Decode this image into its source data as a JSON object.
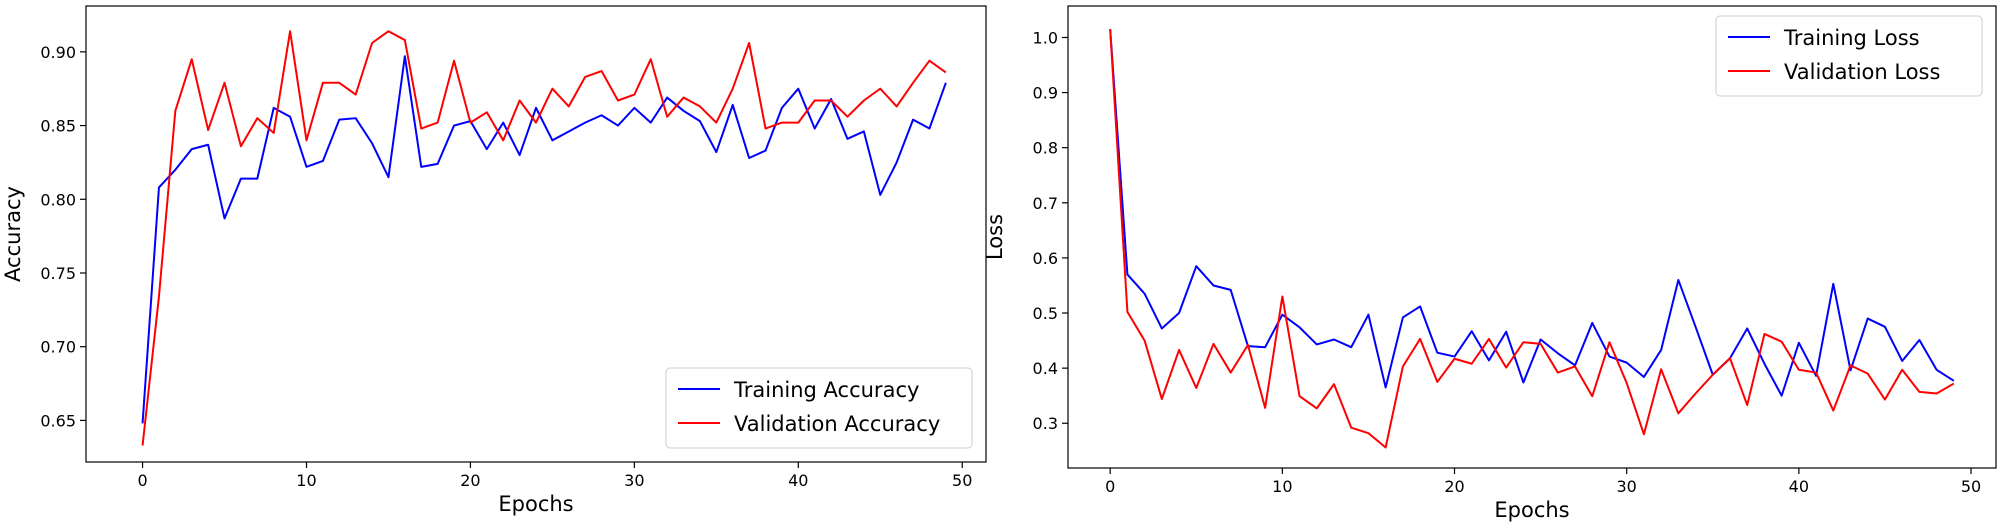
{
  "chart_data": [
    {
      "type": "line",
      "xlabel": "Epochs",
      "ylabel": "Accuracy",
      "xlim": [
        -3.45,
        51.45
      ],
      "ylim": [
        0.6218,
        0.9311
      ],
      "xticks": [
        0,
        10,
        20,
        30,
        40,
        50
      ],
      "yticks": [
        0.65,
        0.7,
        0.75,
        0.8,
        0.85,
        0.9
      ],
      "ytick_labels": [
        "0.65",
        "0.70",
        "0.75",
        "0.80",
        "0.85",
        "0.90"
      ],
      "grid": false,
      "legend_position": "lower-right",
      "x": [
        0,
        1,
        2,
        3,
        4,
        5,
        6,
        7,
        8,
        9,
        10,
        11,
        12,
        13,
        14,
        15,
        16,
        17,
        18,
        19,
        20,
        21,
        22,
        23,
        24,
        25,
        26,
        27,
        28,
        29,
        30,
        31,
        32,
        33,
        34,
        35,
        36,
        37,
        38,
        39,
        40,
        41,
        42,
        43,
        44,
        45,
        46,
        47,
        48,
        49
      ],
      "series": [
        {
          "name": "Training Accuracy",
          "color": "#0000ff",
          "values": [
            0.648,
            0.808,
            0.82,
            0.834,
            0.837,
            0.787,
            0.814,
            0.814,
            0.862,
            0.856,
            0.822,
            0.826,
            0.854,
            0.855,
            0.838,
            0.815,
            0.897,
            0.822,
            0.824,
            0.85,
            0.853,
            0.834,
            0.852,
            0.83,
            0.862,
            0.84,
            0.846,
            0.852,
            0.857,
            0.85,
            0.862,
            0.852,
            0.869,
            0.86,
            0.853,
            0.832,
            0.864,
            0.828,
            0.833,
            0.862,
            0.875,
            0.848,
            0.868,
            0.841,
            0.846,
            0.803,
            0.825,
            0.854,
            0.848,
            0.879
          ]
        },
        {
          "name": "Validation Accuracy",
          "color": "#ff0000",
          "values": [
            0.633,
            0.734,
            0.86,
            0.895,
            0.847,
            0.879,
            0.836,
            0.855,
            0.845,
            0.914,
            0.84,
            0.879,
            0.879,
            0.871,
            0.906,
            0.914,
            0.908,
            0.848,
            0.852,
            0.894,
            0.852,
            0.859,
            0.84,
            0.867,
            0.852,
            0.875,
            0.863,
            0.883,
            0.887,
            0.867,
            0.871,
            0.895,
            0.856,
            0.869,
            0.863,
            0.852,
            0.875,
            0.906,
            0.848,
            0.852,
            0.852,
            0.867,
            0.867,
            0.856,
            0.867,
            0.875,
            0.863,
            0.879,
            0.894,
            0.886
          ]
        }
      ]
    },
    {
      "type": "line",
      "xlabel": "Epochs",
      "ylabel": "Loss",
      "xlim": [
        -2.45,
        51.45
      ],
      "ylim": [
        0.2188,
        1.0571
      ],
      "xticks": [
        0,
        10,
        20,
        30,
        40,
        50
      ],
      "yticks": [
        0.3,
        0.4,
        0.5,
        0.6,
        0.7,
        0.8,
        0.9,
        1.0
      ],
      "ytick_labels": [
        "0.3",
        "0.4",
        "0.5",
        "0.6",
        "0.7",
        "0.8",
        "0.9",
        "1.0"
      ],
      "grid": false,
      "legend_position": "upper-right",
      "x": [
        0,
        1,
        2,
        3,
        4,
        5,
        6,
        7,
        8,
        9,
        10,
        11,
        12,
        13,
        14,
        15,
        16,
        17,
        18,
        19,
        20,
        21,
        22,
        23,
        24,
        25,
        26,
        27,
        28,
        29,
        30,
        31,
        32,
        33,
        34,
        35,
        36,
        37,
        38,
        39,
        40,
        41,
        42,
        43,
        44,
        45,
        46,
        47,
        48,
        49
      ],
      "series": [
        {
          "name": "Training Loss",
          "color": "#0000ff",
          "values": [
            1.015,
            0.57,
            0.535,
            0.472,
            0.5,
            0.585,
            0.55,
            0.542,
            0.44,
            0.438,
            0.497,
            0.474,
            0.443,
            0.452,
            0.438,
            0.497,
            0.365,
            0.492,
            0.512,
            0.428,
            0.421,
            0.467,
            0.414,
            0.466,
            0.374,
            0.452,
            0.427,
            0.405,
            0.482,
            0.421,
            0.41,
            0.384,
            0.433,
            0.56,
            0.475,
            0.388,
            0.418,
            0.472,
            0.408,
            0.35,
            0.446,
            0.386,
            0.553,
            0.396,
            0.49,
            0.475,
            0.413,
            0.451,
            0.397,
            0.377
          ]
        },
        {
          "name": "Validation Loss",
          "color": "#ff0000",
          "values": [
            1.015,
            0.502,
            0.45,
            0.344,
            0.433,
            0.364,
            0.444,
            0.392,
            0.442,
            0.328,
            0.53,
            0.349,
            0.327,
            0.371,
            0.292,
            0.282,
            0.256,
            0.403,
            0.453,
            0.375,
            0.417,
            0.408,
            0.453,
            0.401,
            0.447,
            0.444,
            0.392,
            0.403,
            0.349,
            0.447,
            0.373,
            0.28,
            0.398,
            0.318,
            0.354,
            0.388,
            0.418,
            0.333,
            0.462,
            0.448,
            0.397,
            0.392,
            0.323,
            0.405,
            0.39,
            0.343,
            0.397,
            0.357,
            0.354,
            0.372
          ]
        }
      ]
    }
  ]
}
